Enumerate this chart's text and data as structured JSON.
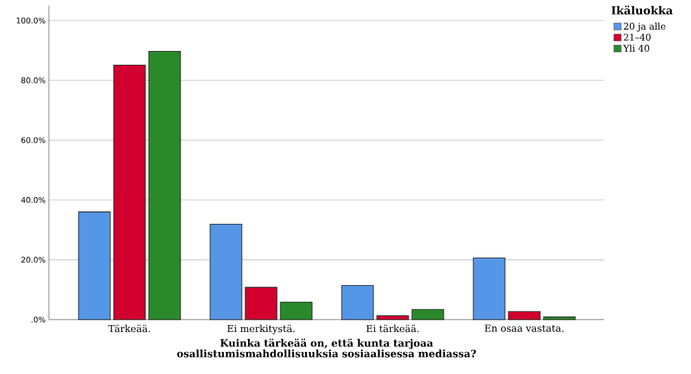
{
  "chart_data": {
    "type": "bar",
    "xlabel": "Kuinka tärkeää on, että kunta tarjoaa osallistumismahdollisuuksia sosiaalisessa mediassa?",
    "legend_title": "Ikäluokka",
    "categories": [
      "Tärkeää.",
      "Ei merkitystä.",
      "Ei tärkeää.",
      "En osaa vastata."
    ],
    "series": [
      {
        "name": "20 ja alle",
        "color": "#5596e6",
        "values": [
          36.0,
          31.9,
          11.4,
          20.6
        ]
      },
      {
        "name": "21–40",
        "color": "#d1002f",
        "values": [
          85.1,
          10.8,
          1.3,
          2.7
        ]
      },
      {
        "name": "Yli 40",
        "color": "#2a8a2a",
        "values": [
          89.7,
          5.8,
          3.4,
          0.9
        ]
      }
    ],
    "ylim": [
      0,
      105
    ],
    "yticks": [
      {
        "value": 0,
        "label": ".0%"
      },
      {
        "value": 20,
        "label": "20.0%"
      },
      {
        "value": 40,
        "label": "40.0%"
      },
      {
        "value": 60,
        "label": "60.0%"
      },
      {
        "value": 80,
        "label": "80.0%"
      },
      {
        "value": 100,
        "label": "100.0%"
      }
    ],
    "grid": "y",
    "legend": "top right"
  }
}
